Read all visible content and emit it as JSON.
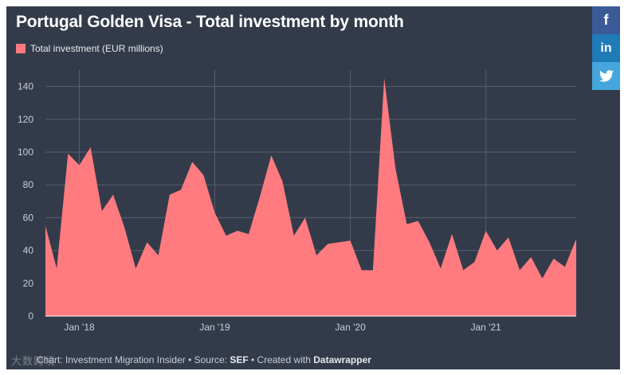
{
  "title": "Portugal Golden Visa - Total investment by month",
  "legend": {
    "label": "Total investment (EUR millions)",
    "color": "#ff7b7f"
  },
  "footer": {
    "prefix": "Chart: ",
    "author": "Investment Migration Insider",
    "source_label": " • Source: ",
    "source": "SEF",
    "created_label": " • Created with ",
    "tool": "Datawrapper"
  },
  "watermark": "大数跨境",
  "social": {
    "facebook": "f",
    "linkedin": "in",
    "twitter_icon": "twitter-bird"
  },
  "colors": {
    "background": "#333b4a",
    "area": "#ff7b7f",
    "grid": "#58606f",
    "axis_text": "#c9cdd6"
  },
  "chart_data": {
    "type": "area",
    "title": "Portugal Golden Visa - Total investment by month",
    "series": [
      {
        "name": "Total investment (EUR millions)",
        "values": [
          55,
          29,
          99,
          92,
          103,
          64,
          74,
          54,
          29,
          45,
          37,
          74,
          77,
          94,
          86,
          63,
          49,
          52,
          50,
          73,
          98,
          82,
          49,
          60,
          37,
          44,
          45,
          46,
          28,
          28,
          145,
          90,
          56,
          58,
          45,
          29,
          50,
          28,
          33,
          52,
          40,
          48,
          28,
          36,
          23,
          35,
          30,
          47
        ]
      }
    ],
    "x_start": "2017-10",
    "x_labels": [
      "Jan '18",
      "Jan '19",
      "Jan '20",
      "Jan '21"
    ],
    "x_label_index": [
      3,
      15,
      27,
      39
    ],
    "yticks": [
      0,
      20,
      40,
      60,
      80,
      100,
      120,
      140
    ],
    "ylim": [
      0,
      150
    ],
    "xlabel": "",
    "ylabel": "",
    "grid": true
  }
}
